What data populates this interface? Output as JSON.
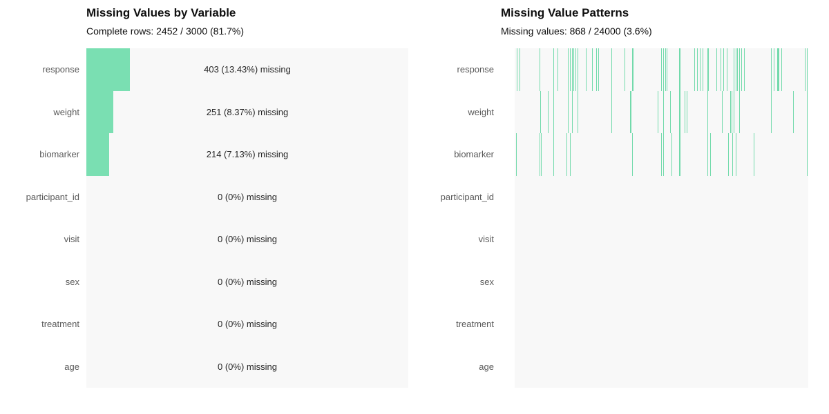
{
  "figure": {
    "kind": "missing-data-summary",
    "background": "#ffffff",
    "panel_background": "#f8f8f8"
  },
  "colors": {
    "bar_green": "#7ADFB2",
    "line_green": "#72DAAB",
    "axis_label_gray": "#595959",
    "value_text": "#262626",
    "title_text": "#0f0f0f"
  },
  "chart_data": [
    {
      "type": "bar",
      "orientation": "horizontal",
      "title": "Missing Values by Variable",
      "subtitle": "Complete rows: 2452 / 3000 (81.7%)",
      "categories": [
        "response",
        "weight",
        "biomarker",
        "participant_id",
        "visit",
        "sex",
        "treatment",
        "age"
      ],
      "values": [
        403,
        251,
        214,
        0,
        0,
        0,
        0,
        0
      ],
      "percent_missing": [
        13.43,
        8.37,
        7.13,
        0,
        0,
        0,
        0,
        0
      ],
      "bar_labels": [
        "403 (13.43%) missing",
        "251 (8.37%) missing",
        "214 (7.13%) missing",
        "0 (0%) missing",
        "0 (0%) missing",
        "0 (0%) missing",
        "0 (0%) missing",
        "0 (0%) missing"
      ],
      "xlim": [
        0,
        3000
      ],
      "complete_rows": 2452,
      "total_rows": 3000,
      "complete_pct": 81.7,
      "grid": false,
      "legend": false
    },
    {
      "type": "heatmap",
      "title": "Missing Value Patterns",
      "subtitle": "Missing values: 868 / 24000 (3.6%)",
      "rows": [
        "response",
        "weight",
        "biomarker",
        "participant_id",
        "visit",
        "sex",
        "treatment",
        "age"
      ],
      "missing_count": 868,
      "total_cells": 24000,
      "missing_pct": 3.6,
      "grid": false,
      "legend": false,
      "lines_note": "each entry is [x_fraction_of_panel_width, line_width_px] marking a missing-value streak",
      "lines": {
        "response": [
          [
            0.007,
            1
          ],
          [
            0.016,
            1
          ],
          [
            0.084,
            1
          ],
          [
            0.132,
            1
          ],
          [
            0.145,
            1
          ],
          [
            0.182,
            1
          ],
          [
            0.188,
            1
          ],
          [
            0.195,
            1
          ],
          [
            0.2,
            1
          ],
          [
            0.207,
            1
          ],
          [
            0.214,
            1
          ],
          [
            0.243,
            1
          ],
          [
            0.264,
            1
          ],
          [
            0.277,
            1
          ],
          [
            0.284,
            1
          ],
          [
            0.329,
            1
          ],
          [
            0.373,
            1
          ],
          [
            0.4,
            2
          ],
          [
            0.498,
            1
          ],
          [
            0.506,
            1
          ],
          [
            0.512,
            1
          ],
          [
            0.518,
            1
          ],
          [
            0.56,
            2
          ],
          [
            0.612,
            1
          ],
          [
            0.622,
            1
          ],
          [
            0.631,
            1
          ],
          [
            0.64,
            1
          ],
          [
            0.656,
            2
          ],
          [
            0.688,
            1
          ],
          [
            0.7,
            1
          ],
          [
            0.711,
            1
          ],
          [
            0.722,
            1
          ],
          [
            0.745,
            1
          ],
          [
            0.753,
            1
          ],
          [
            0.758,
            1
          ],
          [
            0.765,
            1
          ],
          [
            0.772,
            1
          ],
          [
            0.782,
            1
          ],
          [
            0.874,
            1
          ],
          [
            0.882,
            1
          ],
          [
            0.894,
            3
          ],
          [
            0.908,
            1
          ],
          [
            0.988,
            1
          ],
          [
            0.995,
            1
          ]
        ],
        "weight": [
          [
            0.087,
            1
          ],
          [
            0.113,
            1
          ],
          [
            0.132,
            1
          ],
          [
            0.182,
            1
          ],
          [
            0.195,
            1
          ],
          [
            0.214,
            1
          ],
          [
            0.329,
            1
          ],
          [
            0.393,
            2
          ],
          [
            0.487,
            1
          ],
          [
            0.506,
            1
          ],
          [
            0.529,
            1
          ],
          [
            0.56,
            2
          ],
          [
            0.579,
            1
          ],
          [
            0.586,
            1
          ],
          [
            0.656,
            1
          ],
          [
            0.706,
            1
          ],
          [
            0.733,
            1
          ],
          [
            0.739,
            1
          ],
          [
            0.745,
            1
          ],
          [
            0.765,
            1
          ],
          [
            0.874,
            1
          ],
          [
            0.949,
            1
          ],
          [
            0.995,
            1
          ]
        ],
        "biomarker": [
          [
            0.005,
            1
          ],
          [
            0.085,
            1
          ],
          [
            0.089,
            1
          ],
          [
            0.132,
            1
          ],
          [
            0.176,
            1
          ],
          [
            0.188,
            1
          ],
          [
            0.4,
            1
          ],
          [
            0.498,
            1
          ],
          [
            0.506,
            1
          ],
          [
            0.534,
            1
          ],
          [
            0.561,
            2
          ],
          [
            0.656,
            1
          ],
          [
            0.666,
            1
          ],
          [
            0.726,
            1
          ],
          [
            0.741,
            1
          ],
          [
            0.753,
            1
          ],
          [
            0.813,
            1
          ],
          [
            0.995,
            1
          ]
        ],
        "participant_id": [],
        "visit": [],
        "sex": [],
        "treatment": [],
        "age": []
      }
    }
  ]
}
